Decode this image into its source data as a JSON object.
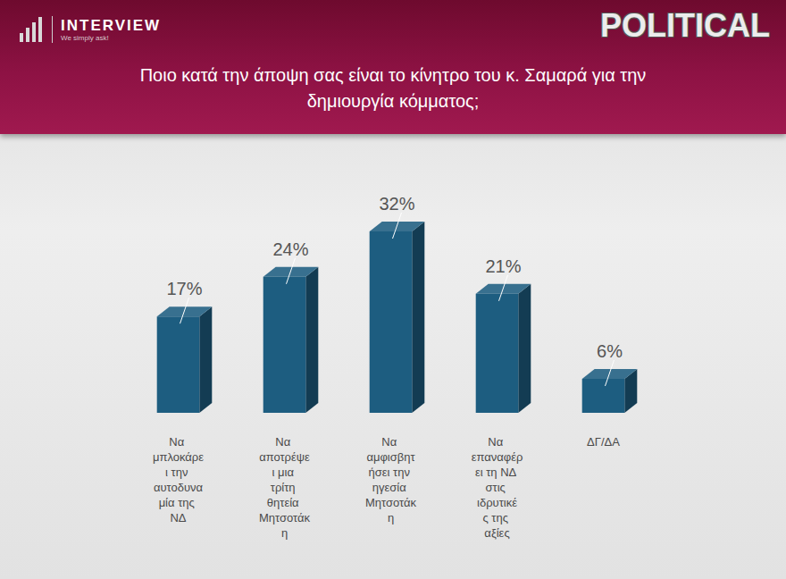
{
  "header": {
    "logo": "INTERVIEW",
    "tagline": "We simply ask!",
    "badge": "POLITICAL"
  },
  "chart_data": {
    "type": "bar",
    "title": "Ποιο κατά την άποψη σας είναι το κίνητρο του κ. Σαμαρά για την δημιουργία κόμματος;",
    "categories": [
      "Να μπλοκάρει την αυτοδυναμία της ΝΔ",
      "Να αποτρέψει μια τρίτη θητεία Μητσοτάκη",
      "Να αμφισβητήσει την ηγεσία Μητσοτάκη",
      "Να επαναφέρει τη ΝΔ στις ιδρυτικές της αξίες",
      "ΔΓ/ΔΑ"
    ],
    "values": [
      17,
      24,
      32,
      21,
      6
    ],
    "value_labels": [
      "17%",
      "24%",
      "32%",
      "21%",
      "6%"
    ],
    "color": "#1d5d80",
    "ylim": [
      0,
      35
    ],
    "data_labels": true,
    "tick_labels": "x",
    "grid": false
  }
}
